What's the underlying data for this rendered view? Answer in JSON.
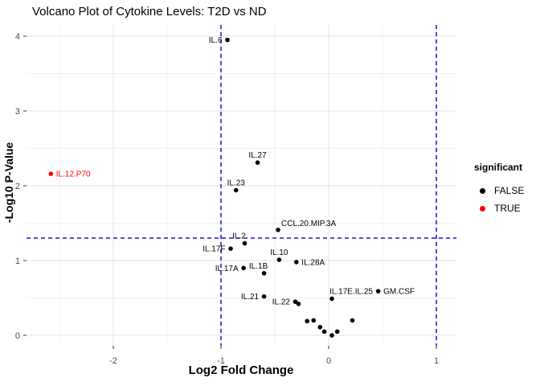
{
  "title": "Volcano Plot of Cytokine Levels: T2D vs ND",
  "axes": {
    "x": {
      "label": "Log2 Fold Change",
      "ticks": [
        -2,
        -1,
        0,
        1
      ],
      "minor_ticks": [
        -2.5,
        -1.5,
        -0.5,
        0.5
      ]
    },
    "y": {
      "label": "-Log10 P-Value",
      "ticks": [
        0,
        1,
        2,
        3,
        4
      ],
      "minor_ticks": [
        0.5,
        1.5,
        2.5,
        3.5
      ]
    }
  },
  "thresholds": {
    "horizontal_y": 1.3,
    "vertical_x": [
      -1,
      1
    ]
  },
  "legend": {
    "title": "significant",
    "items": [
      {
        "label": "FALSE",
        "color": "#000000"
      },
      {
        "label": "TRUE",
        "color": "#FF0000"
      }
    ]
  },
  "colors": {
    "threshold_line": "#0000CD",
    "grid_major": "#E3E3E3",
    "grid_minor": "#F1F1F1",
    "tick_text": "#4D4D4D",
    "tick_mark": "#333333",
    "point_false": "#000000",
    "point_true": "#FF0000"
  },
  "chart_data": {
    "type": "scatter",
    "title": "Volcano Plot of Cytokine Levels: T2D vs ND",
    "xlabel": "Log2 Fold Change",
    "ylabel": "-Log10 P-Value",
    "xlim": [
      -2.8,
      1.19
    ],
    "ylim": [
      -0.14,
      4.15
    ],
    "grid": true,
    "legend_position": "right",
    "points": [
      {
        "name": "IL.6",
        "x": -0.94,
        "y": 3.95,
        "significant": false,
        "label_side": "left"
      },
      {
        "name": "IL.27",
        "x": -0.66,
        "y": 2.31,
        "significant": false,
        "label_side": "above"
      },
      {
        "name": "IL.23",
        "x": -0.86,
        "y": 1.94,
        "significant": false,
        "label_side": "above"
      },
      {
        "name": "IL.12.P70",
        "x": -2.58,
        "y": 2.16,
        "significant": true,
        "label_side": "right"
      },
      {
        "name": "CCL.20.MIP.3A",
        "x": -0.47,
        "y": 1.41,
        "significant": false,
        "label_side": "above_right"
      },
      {
        "name": "IL.2",
        "x": -0.78,
        "y": 1.23,
        "significant": false,
        "label_side": "above",
        "label_dx": -7
      },
      {
        "name": "IL.17F",
        "x": -0.91,
        "y": 1.16,
        "significant": false,
        "label_side": "left"
      },
      {
        "name": "IL.10",
        "x": -0.46,
        "y": 1.01,
        "significant": false,
        "label_side": "above"
      },
      {
        "name": "IL.28A",
        "x": -0.3,
        "y": 0.98,
        "significant": false,
        "label_side": "right"
      },
      {
        "name": "IL.17A",
        "x": -0.79,
        "y": 0.9,
        "significant": false,
        "label_side": "left"
      },
      {
        "name": "IL.1B",
        "x": -0.6,
        "y": 0.83,
        "significant": false,
        "label_side": "above",
        "label_dx": -7
      },
      {
        "name": "IL.21",
        "x": -0.6,
        "y": 0.52,
        "significant": false,
        "label_side": "left"
      },
      {
        "name": "IL.22",
        "x": -0.31,
        "y": 0.45,
        "significant": false,
        "label_side": "left"
      },
      {
        "name": "IL.17E.IL.25",
        "x": 0.03,
        "y": 0.49,
        "significant": false,
        "label_side": "above",
        "label_dx": 24
      },
      {
        "name": "GM.CSF",
        "x": 0.46,
        "y": 0.59,
        "significant": false,
        "label_side": "right"
      },
      {
        "name": "",
        "x": -0.28,
        "y": 0.42,
        "significant": false
      },
      {
        "name": "",
        "x": -0.2,
        "y": 0.19,
        "significant": false
      },
      {
        "name": "",
        "x": -0.14,
        "y": 0.2,
        "significant": false
      },
      {
        "name": "",
        "x": -0.08,
        "y": 0.11,
        "significant": false
      },
      {
        "name": "",
        "x": -0.04,
        "y": 0.05,
        "significant": false
      },
      {
        "name": "",
        "x": 0.03,
        "y": 0.0,
        "significant": false
      },
      {
        "name": "",
        "x": 0.08,
        "y": 0.05,
        "significant": false
      },
      {
        "name": "",
        "x": 0.22,
        "y": 0.2,
        "significant": false
      }
    ]
  }
}
